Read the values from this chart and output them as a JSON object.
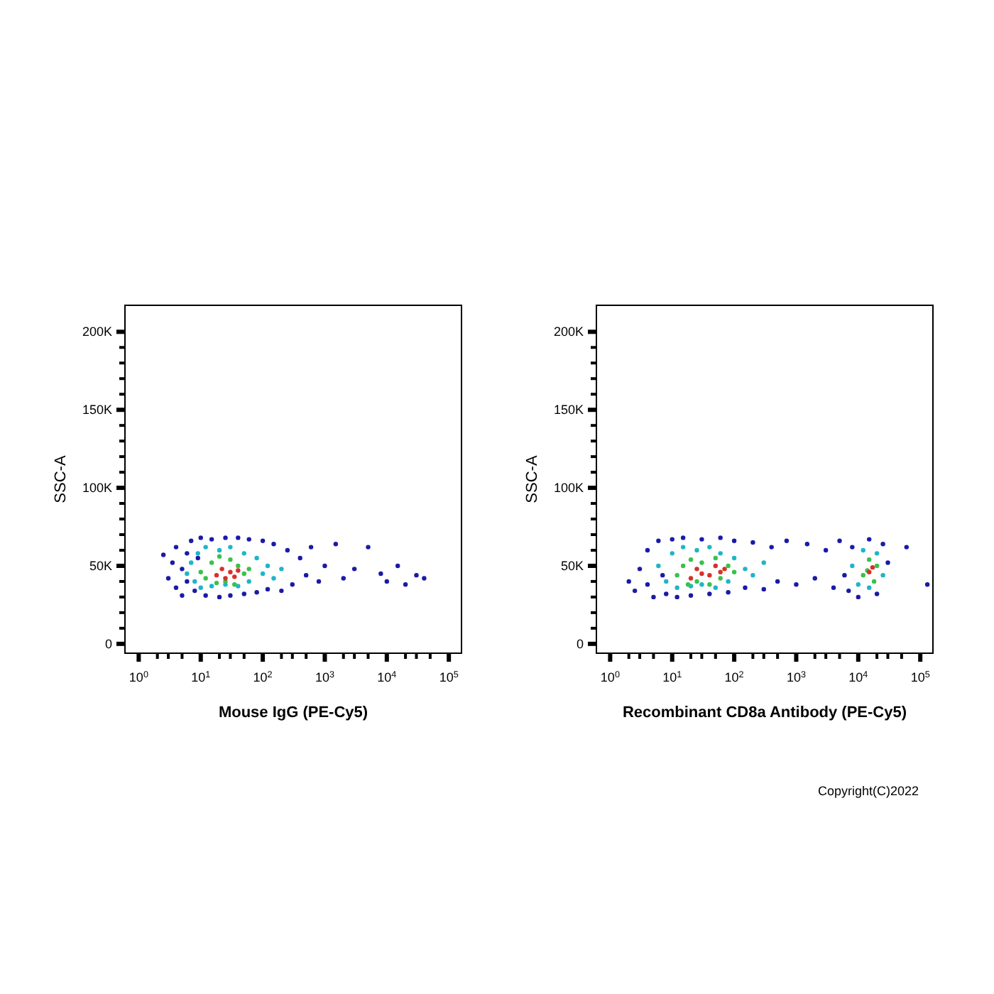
{
  "chart_data": [
    {
      "type": "scatter",
      "xlabel": "Mouse IgG (PE-Cy5)",
      "ylabel": "SSC-A",
      "log": "x",
      "marker": "circle",
      "grid": false,
      "xlim": [
        0.6,
        160000
      ],
      "ylim": [
        -6000,
        217000
      ],
      "xticks": [
        {
          "value": 1,
          "label": "10$^{0}$"
        },
        {
          "value": 2,
          "label": null
        },
        {
          "value": 3,
          "label": null
        },
        {
          "value": 5,
          "label": null
        },
        {
          "value": 10,
          "label": "10$^{1}$"
        },
        {
          "value": 20,
          "label": null
        },
        {
          "value": 30,
          "label": null
        },
        {
          "value": 50,
          "label": null
        },
        {
          "value": 100,
          "label": "10$^{2}$"
        },
        {
          "value": 200,
          "label": null
        },
        {
          "value": 300,
          "label": null
        },
        {
          "value": 500,
          "label": null
        },
        {
          "value": 1000,
          "label": "10$^{3}$"
        },
        {
          "value": 2000,
          "label": null
        },
        {
          "value": 3000,
          "label": null
        },
        {
          "value": 5000,
          "label": null
        },
        {
          "value": 10000,
          "label": "10$^{4}$"
        },
        {
          "value": 20000,
          "label": null
        },
        {
          "value": 30000,
          "label": null
        },
        {
          "value": 50000,
          "label": null
        },
        {
          "value": 100000,
          "label": "10$^{5}$"
        }
      ],
      "yticks": [
        {
          "value": 0,
          "label": "0"
        },
        {
          "value": 10000,
          "label": null
        },
        {
          "value": 20000,
          "label": null
        },
        {
          "value": 30000,
          "label": null
        },
        {
          "value": 40000,
          "label": null
        },
        {
          "value": 50000,
          "label": "50K"
        },
        {
          "value": 60000,
          "label": null
        },
        {
          "value": 70000,
          "label": null
        },
        {
          "value": 80000,
          "label": null
        },
        {
          "value": 90000,
          "label": null
        },
        {
          "value": 100000,
          "label": "100K"
        },
        {
          "value": 110000,
          "label": null
        },
        {
          "value": 120000,
          "label": null
        },
        {
          "value": 130000,
          "label": null
        },
        {
          "value": 140000,
          "label": null
        },
        {
          "value": 150000,
          "label": "150K"
        },
        {
          "value": 160000,
          "label": null
        },
        {
          "value": 170000,
          "label": null
        },
        {
          "value": 180000,
          "label": null
        },
        {
          "value": 190000,
          "label": null
        },
        {
          "value": 200000,
          "label": "200K"
        }
      ],
      "series": [
        {
          "color": "#1a1aa8",
          "x": [
            2.5,
            3,
            3.5,
            4,
            4,
            5,
            5,
            6,
            6,
            7,
            8,
            9,
            10,
            12,
            15,
            20,
            25,
            30,
            40,
            50,
            60,
            80,
            100,
            120,
            150,
            200,
            250,
            300,
            400,
            500,
            600,
            800,
            1000,
            1500,
            2000,
            3000,
            5000,
            8000,
            10000,
            15000,
            20000,
            30000,
            40000
          ],
          "values": [
            57000,
            42000,
            52000,
            36000,
            62000,
            48000,
            31000,
            58000,
            40000,
            66000,
            34000,
            55000,
            68000,
            31000,
            67000,
            30000,
            68000,
            31000,
            68000,
            32000,
            67000,
            33000,
            66000,
            35000,
            64000,
            34000,
            60000,
            38000,
            55000,
            44000,
            62000,
            40000,
            50000,
            64000,
            42000,
            48000,
            62000,
            45000,
            40000,
            50000,
            38000,
            44000,
            42000
          ]
        },
        {
          "color": "#1fb5c8",
          "x": [
            6,
            7,
            8,
            9,
            10,
            12,
            15,
            20,
            25,
            30,
            40,
            50,
            60,
            80,
            100,
            120,
            150,
            200
          ],
          "values": [
            45000,
            52000,
            40000,
            58000,
            36000,
            62000,
            37000,
            60000,
            38000,
            62000,
            37000,
            58000,
            40000,
            55000,
            45000,
            50000,
            42000,
            48000
          ]
        },
        {
          "color": "#39c24a",
          "x": [
            10,
            12,
            15,
            18,
            20,
            25,
            30,
            35,
            40,
            50,
            60
          ],
          "values": [
            46000,
            42000,
            52000,
            39000,
            56000,
            40000,
            54000,
            38000,
            50000,
            45000,
            48000
          ]
        },
        {
          "color": "#d8302a",
          "x": [
            18,
            22,
            25,
            30,
            35,
            40
          ],
          "values": [
            44000,
            48000,
            42000,
            46000,
            43000,
            47000
          ]
        }
      ]
    },
    {
      "type": "scatter",
      "xlabel": "Recombinant CD8a Antibody (PE-Cy5)",
      "ylabel": "SSC-A",
      "log": "x",
      "marker": "circle",
      "grid": false,
      "xlim": [
        0.6,
        160000
      ],
      "ylim": [
        -6000,
        217000
      ],
      "xticks": [
        {
          "value": 1,
          "label": "10$^{0}$"
        },
        {
          "value": 2,
          "label": null
        },
        {
          "value": 3,
          "label": null
        },
        {
          "value": 5,
          "label": null
        },
        {
          "value": 10,
          "label": "10$^{1}$"
        },
        {
          "value": 20,
          "label": null
        },
        {
          "value": 30,
          "label": null
        },
        {
          "value": 50,
          "label": null
        },
        {
          "value": 100,
          "label": "10$^{2}$"
        },
        {
          "value": 200,
          "label": null
        },
        {
          "value": 300,
          "label": null
        },
        {
          "value": 500,
          "label": null
        },
        {
          "value": 1000,
          "label": "10$^{3}$"
        },
        {
          "value": 2000,
          "label": null
        },
        {
          "value": 3000,
          "label": null
        },
        {
          "value": 5000,
          "label": null
        },
        {
          "value": 10000,
          "label": "10$^{4}$"
        },
        {
          "value": 20000,
          "label": null
        },
        {
          "value": 30000,
          "label": null
        },
        {
          "value": 50000,
          "label": null
        },
        {
          "value": 100000,
          "label": "10$^{5}$"
        }
      ],
      "yticks": [
        {
          "value": 0,
          "label": "0"
        },
        {
          "value": 10000,
          "label": null
        },
        {
          "value": 20000,
          "label": null
        },
        {
          "value": 30000,
          "label": null
        },
        {
          "value": 40000,
          "label": null
        },
        {
          "value": 50000,
          "label": "50K"
        },
        {
          "value": 60000,
          "label": null
        },
        {
          "value": 70000,
          "label": null
        },
        {
          "value": 80000,
          "label": null
        },
        {
          "value": 90000,
          "label": null
        },
        {
          "value": 100000,
          "label": "100K"
        },
        {
          "value": 110000,
          "label": null
        },
        {
          "value": 120000,
          "label": null
        },
        {
          "value": 130000,
          "label": null
        },
        {
          "value": 140000,
          "label": null
        },
        {
          "value": 150000,
          "label": "150K"
        },
        {
          "value": 160000,
          "label": null
        },
        {
          "value": 170000,
          "label": null
        },
        {
          "value": 180000,
          "label": null
        },
        {
          "value": 190000,
          "label": null
        },
        {
          "value": 200000,
          "label": "200K"
        }
      ],
      "annotations": [
        "Copyright(C)2022"
      ],
      "series": [
        {
          "color": "#1a1aa8",
          "x": [
            2,
            2.5,
            3,
            4,
            4,
            5,
            6,
            7,
            8,
            10,
            12,
            15,
            20,
            30,
            40,
            60,
            80,
            100,
            150,
            200,
            300,
            400,
            500,
            700,
            1000,
            1500,
            2000,
            3000,
            4000,
            5000,
            6000,
            7000,
            8000,
            10000,
            15000,
            20000,
            25000,
            30000,
            60000,
            130000
          ],
          "values": [
            40000,
            34000,
            48000,
            60000,
            38000,
            30000,
            66000,
            44000,
            32000,
            67000,
            30000,
            68000,
            31000,
            67000,
            32000,
            68000,
            33000,
            66000,
            36000,
            65000,
            35000,
            62000,
            40000,
            66000,
            38000,
            64000,
            42000,
            60000,
            36000,
            66000,
            44000,
            34000,
            62000,
            30000,
            67000,
            32000,
            64000,
            52000,
            62000,
            38000
          ]
        },
        {
          "color": "#1fb5c8",
          "x": [
            6,
            8,
            10,
            12,
            15,
            20,
            25,
            30,
            40,
            50,
            60,
            80,
            100,
            150,
            200,
            300,
            10000,
            12000,
            15000,
            20000,
            25000,
            8000
          ],
          "values": [
            50000,
            40000,
            58000,
            36000,
            62000,
            37000,
            60000,
            38000,
            62000,
            36000,
            58000,
            40000,
            55000,
            48000,
            44000,
            52000,
            38000,
            60000,
            36000,
            58000,
            44000,
            50000
          ]
        },
        {
          "color": "#39c24a",
          "x": [
            12,
            15,
            18,
            20,
            25,
            30,
            40,
            50,
            60,
            80,
            100,
            12000,
            15000,
            18000,
            20000,
            14000
          ],
          "values": [
            44000,
            50000,
            38000,
            54000,
            40000,
            52000,
            38000,
            55000,
            42000,
            50000,
            46000,
            44000,
            54000,
            40000,
            50000,
            47000
          ]
        },
        {
          "color": "#d8302a",
          "x": [
            20,
            25,
            30,
            40,
            50,
            60,
            70,
            15000,
            17000
          ],
          "values": [
            42000,
            48000,
            45000,
            44000,
            50000,
            46000,
            48000,
            46000,
            49000
          ]
        }
      ]
    }
  ]
}
